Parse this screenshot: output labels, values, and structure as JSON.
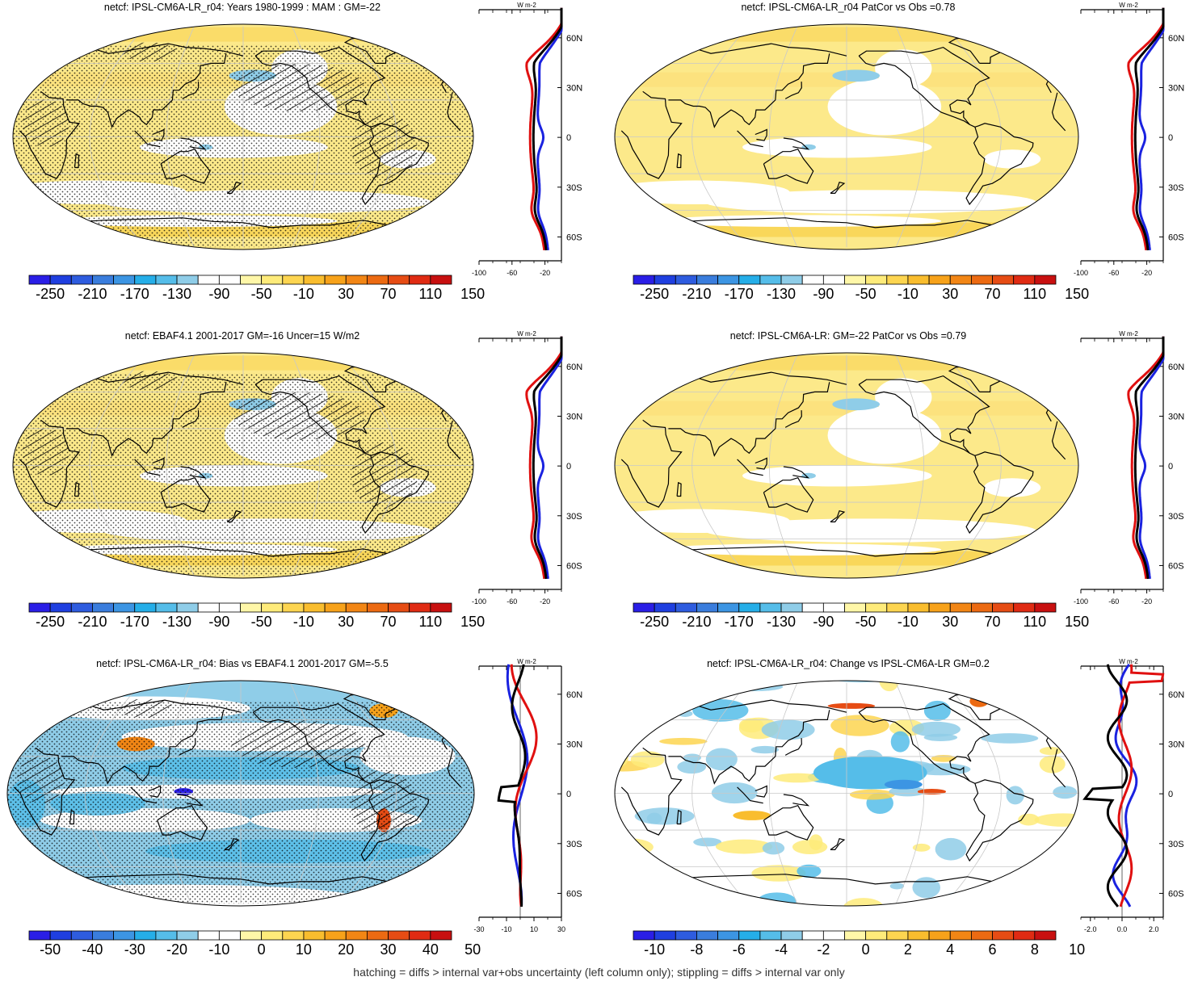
{
  "panels": [
    {
      "title": "netcf: IPSL-CM6A-LR_r04: Years 1980-1999 : MAM : GM=-22",
      "colorbar_labels": [
        "-250",
        "-210",
        "-170",
        "-130",
        "-90",
        "-50",
        "-10",
        "30",
        "70",
        "110",
        "150"
      ],
      "zonal_xticks": [
        "-100",
        "-60",
        "-20"
      ],
      "zonal_yticks": [
        "60N",
        "30N",
        "0",
        "30S",
        "60S"
      ],
      "zonal_unit": "W m-2",
      "base": "yellow",
      "hatching": true,
      "stippling": true
    },
    {
      "title": "netcf: IPSL-CM6A-LR_r04 PatCor vs Obs =0.78",
      "colorbar_labels": [
        "-250",
        "-210",
        "-170",
        "-130",
        "-90",
        "-50",
        "-10",
        "30",
        "70",
        "110",
        "150"
      ],
      "zonal_xticks": [
        "-100",
        "-60",
        "-20"
      ],
      "zonal_yticks": [
        "60N",
        "30N",
        "0",
        "30S",
        "60S"
      ],
      "zonal_unit": "W m-2",
      "base": "yellow",
      "hatching": false,
      "stippling": false
    },
    {
      "title": "netcf: EBAF4.1 2001-2017 GM=-16 Uncer=15 W/m2",
      "colorbar_labels": [
        "-250",
        "-210",
        "-170",
        "-130",
        "-90",
        "-50",
        "-10",
        "30",
        "70",
        "110",
        "150"
      ],
      "zonal_xticks": [
        "-100",
        "-60",
        "-20"
      ],
      "zonal_yticks": [
        "60N",
        "30N",
        "0",
        "30S",
        "60S"
      ],
      "zonal_unit": "W m-2",
      "base": "yellow",
      "hatching": true,
      "stippling": true
    },
    {
      "title": "netcf: IPSL-CM6A-LR: GM=-22 PatCor vs Obs =0.79",
      "colorbar_labels": [
        "-250",
        "-210",
        "-170",
        "-130",
        "-90",
        "-50",
        "-10",
        "30",
        "70",
        "110",
        "150"
      ],
      "zonal_xticks": [
        "-100",
        "-60",
        "-20"
      ],
      "zonal_yticks": [
        "60N",
        "30N",
        "0",
        "30S",
        "60S"
      ],
      "zonal_unit": "W m-2",
      "base": "yellow",
      "hatching": false,
      "stippling": false
    },
    {
      "title": "netcf: IPSL-CM6A-LR_r04: Bias vs EBAF4.1 2001-2017 GM=-5.5",
      "colorbar_labels": [
        "-50",
        "-40",
        "-30",
        "-20",
        "-10",
        "0",
        "10",
        "20",
        "30",
        "40",
        "50"
      ],
      "zonal_xticks": [
        "-30",
        "-10",
        "10",
        "30"
      ],
      "zonal_yticks": [
        "60N",
        "30N",
        "0",
        "30S",
        "60S"
      ],
      "zonal_unit": "W m-2",
      "base": "blue",
      "hatching": true,
      "stippling": true
    },
    {
      "title": "netcf: IPSL-CM6A-LR_r04: Change vs IPSL-CM6A-LR GM=0.2",
      "colorbar_labels": [
        "-10",
        "-8",
        "-6",
        "-4",
        "-2",
        "0",
        "2",
        "4",
        "6",
        "8",
        "10"
      ],
      "zonal_xticks": [
        "-2.0",
        "0.0",
        "2.0"
      ],
      "zonal_yticks": [
        "60N",
        "30N",
        "0",
        "30S",
        "60S"
      ],
      "zonal_unit": "W m-2",
      "base": "white",
      "hatching": false,
      "stippling": false
    }
  ],
  "colorbar_colors": [
    "#2a1ee6",
    "#1f3fe0",
    "#2e5cdf",
    "#3a7ddd",
    "#3c95e3",
    "#25aee8",
    "#55bde9",
    "#8fcde8",
    "#ffffff",
    "#ffffff",
    "#fff7a8",
    "#feeb7a",
    "#fdd550",
    "#f9bd2e",
    "#f7a21a",
    "#f28615",
    "#ec6a12",
    "#e64c14",
    "#e02b13",
    "#c81010"
  ],
  "footer": "hatching = diffs > internal var+obs uncertainty (left column only); stippling = diffs > internal var only"
}
